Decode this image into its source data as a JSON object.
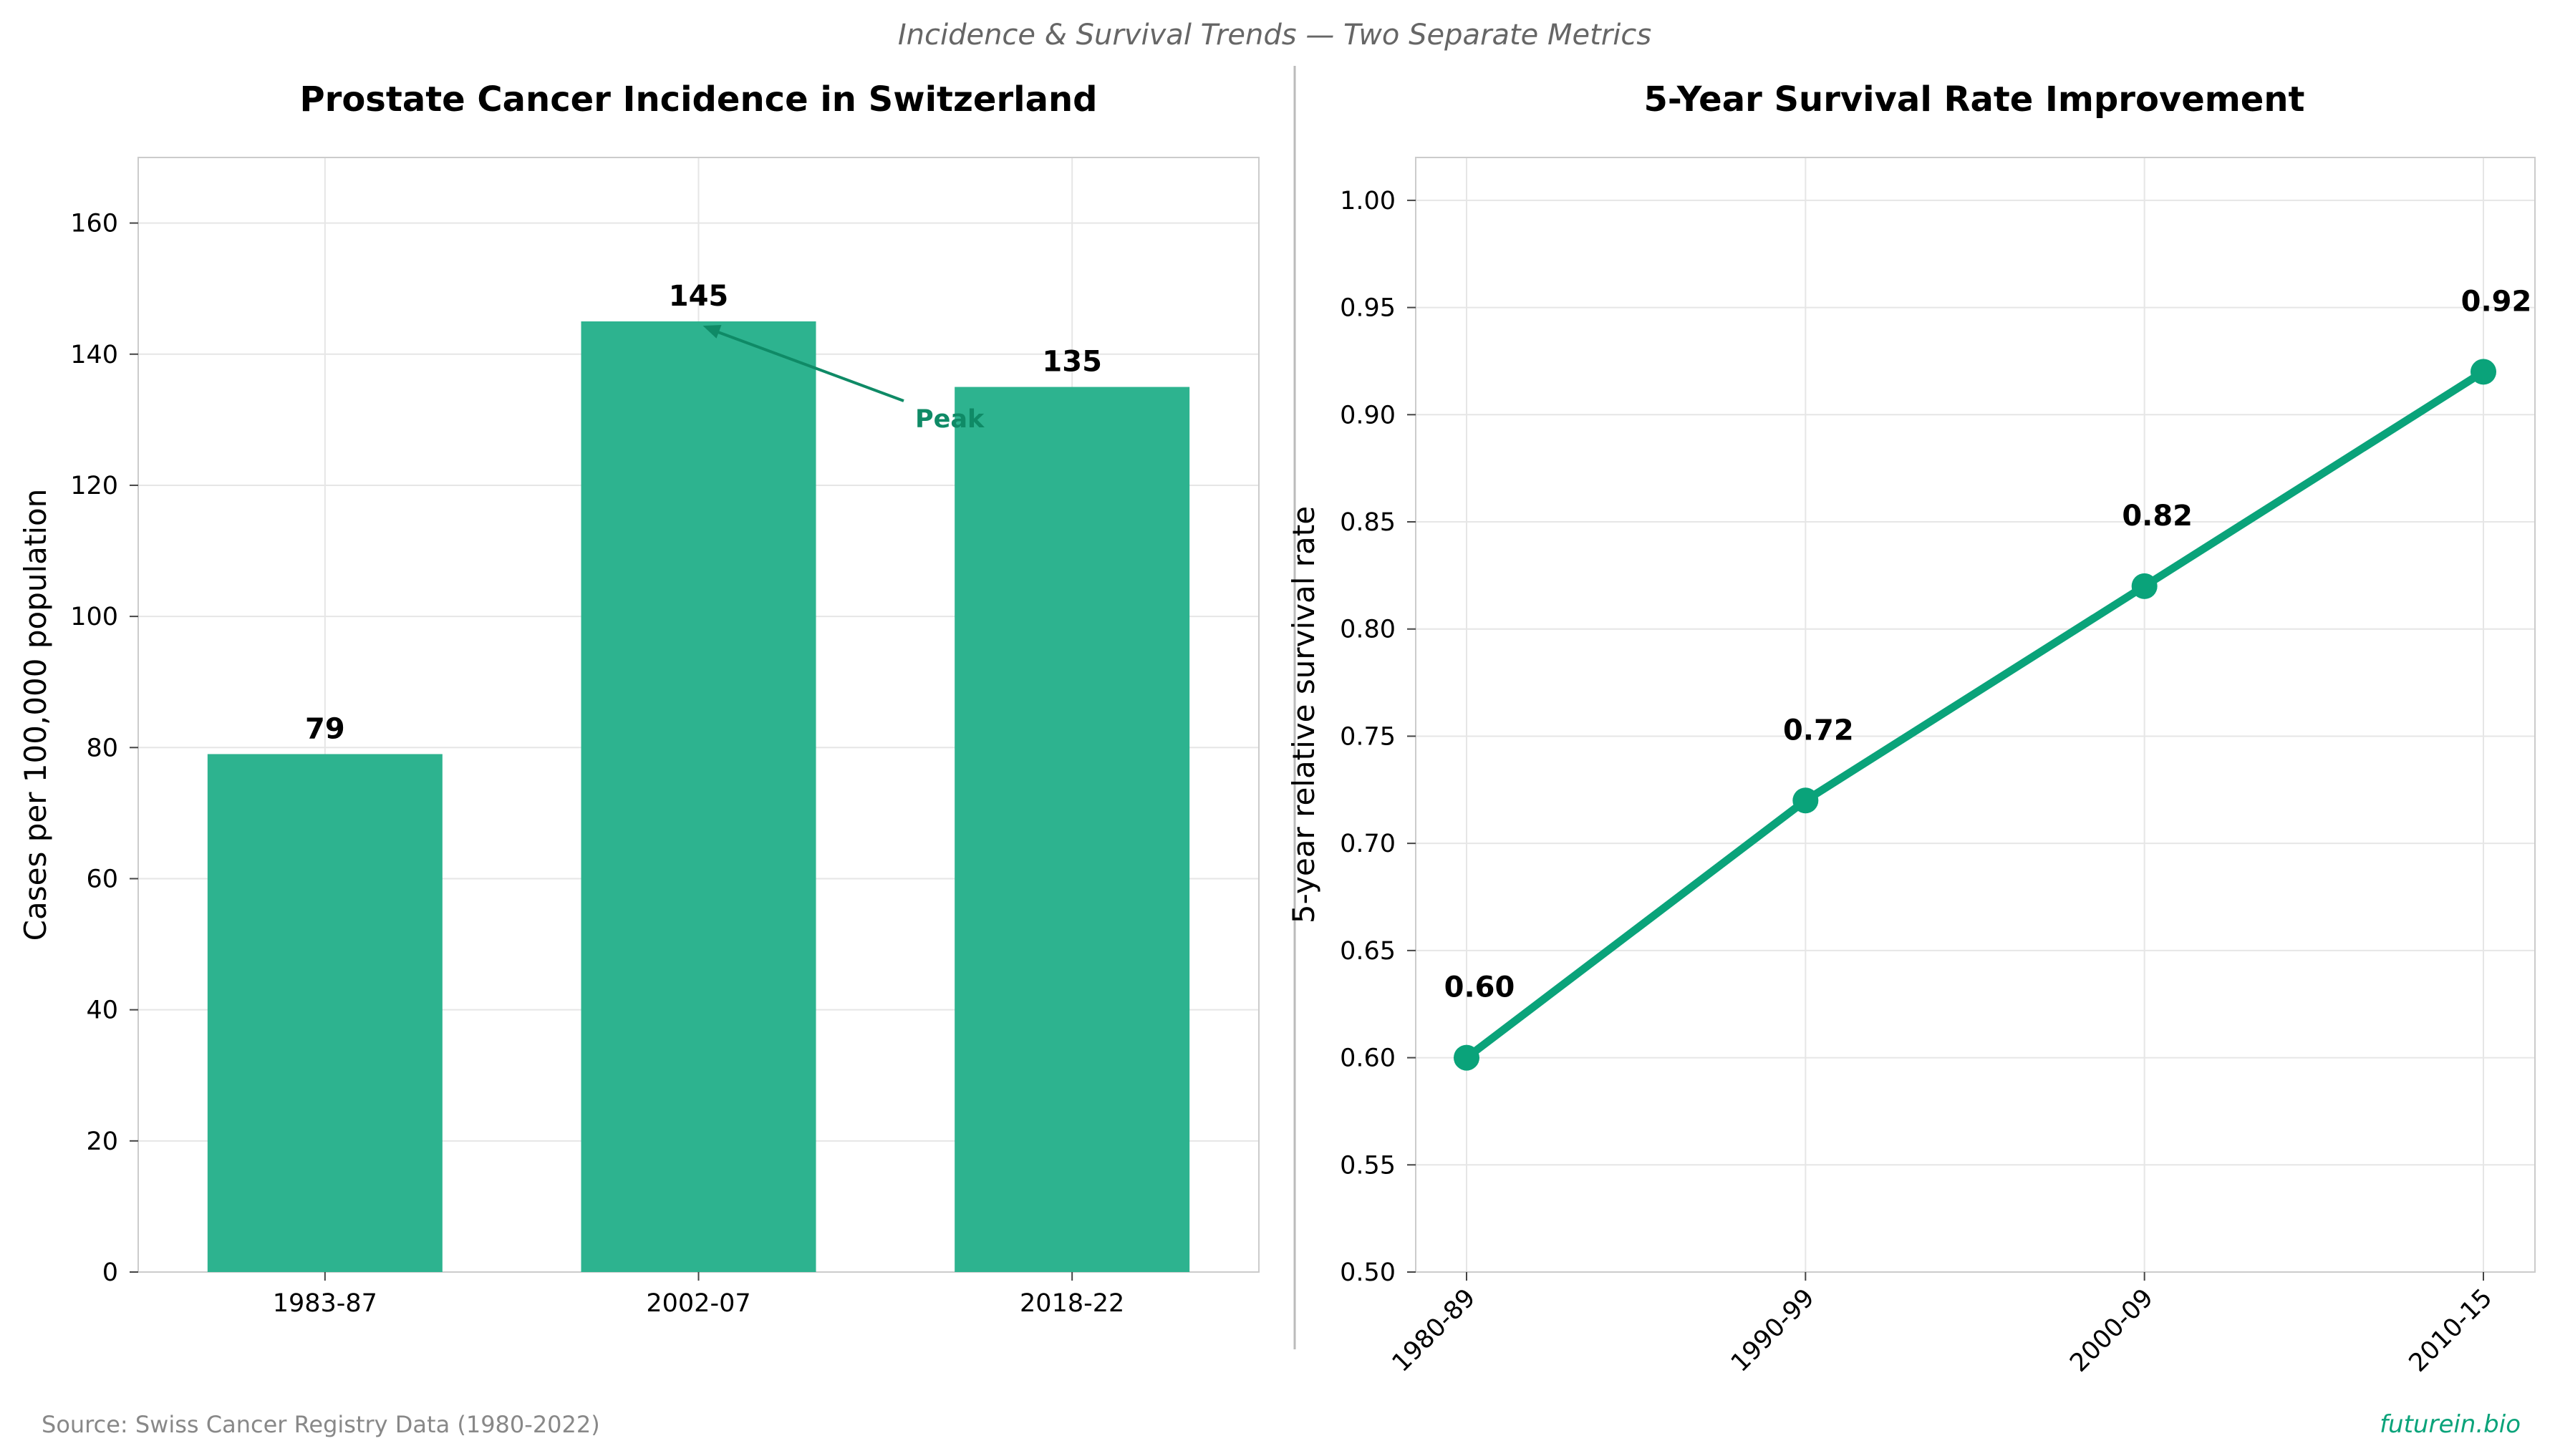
{
  "suptitle": "Incidence & Survival Trends — Two Separate Metrics",
  "source": "Source: Swiss Cancer Registry Data (1980-2022)",
  "brand": "futurein.bio",
  "colors": {
    "bar": "#2db38f",
    "line": "#0aa37a",
    "annotation": "#0f8a66",
    "grid": "#e6e6e6",
    "frame": "#cccccc"
  },
  "chart_data": [
    {
      "type": "bar",
      "title": "Prostate Cancer Incidence in Switzerland",
      "xlabel": "",
      "ylabel": "Cases per 100,000 population",
      "categories": [
        "1983-87",
        "2002-07",
        "2018-22"
      ],
      "values": [
        79,
        145,
        135
      ],
      "data_labels": [
        "79",
        "145",
        "135"
      ],
      "ylim": [
        0,
        170
      ],
      "yticks": [
        0,
        20,
        40,
        60,
        80,
        100,
        120,
        140,
        160
      ],
      "annotation": {
        "text": "Peak",
        "target_category": "2002-07",
        "target_value": 145
      },
      "grid": true
    },
    {
      "type": "line",
      "title": "5-Year Survival Rate Improvement",
      "xlabel": "",
      "ylabel": "5-year relative survival rate",
      "categories": [
        "1980-89",
        "1990-99",
        "2000-09",
        "2010-15"
      ],
      "values": [
        0.6,
        0.72,
        0.82,
        0.92
      ],
      "data_labels": [
        "0.60",
        "0.72",
        "0.82",
        "0.92"
      ],
      "ylim": [
        0.5,
        1.02
      ],
      "yticks": [
        "0.50",
        "0.55",
        "0.60",
        "0.65",
        "0.70",
        "0.75",
        "0.80",
        "0.85",
        "0.90",
        "0.95",
        "1.00"
      ],
      "xtick_rotation": 45,
      "grid": true
    }
  ]
}
